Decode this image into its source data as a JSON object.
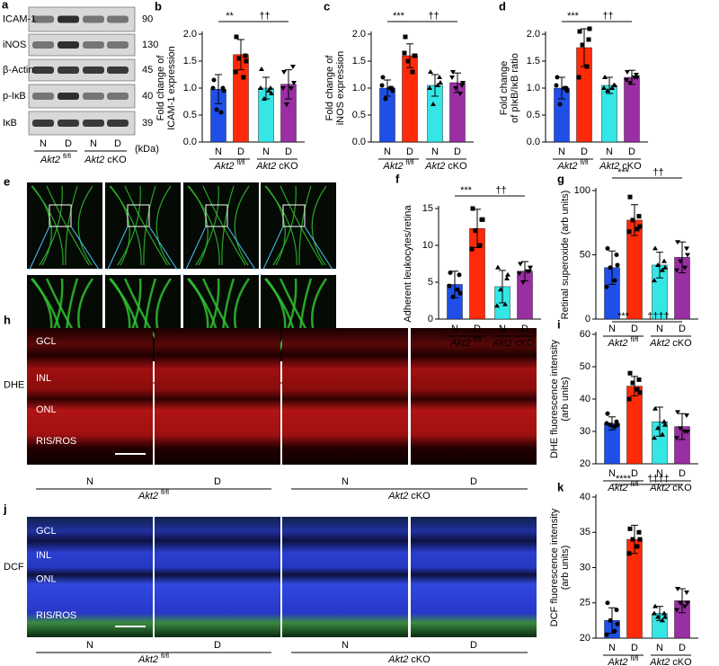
{
  "blot": {
    "label": "a",
    "unit": "(kDa)",
    "rows": [
      {
        "name": "ICAM-1",
        "kda": 90
      },
      {
        "name": "iNOS",
        "kda": 130
      },
      {
        "name": "β-Actin",
        "kda": 45
      },
      {
        "name": "p-IκB",
        "kda": 40
      },
      {
        "name": "IκB",
        "kda": 39
      }
    ]
  },
  "conditions": [
    "N",
    "D"
  ],
  "genotypes": [
    {
      "gene": "Akt2",
      "suffix": "fl/fl"
    },
    {
      "gene": "Akt2",
      "suffix": "cKO"
    }
  ],
  "images": {
    "e": {
      "label": "e"
    },
    "h": {
      "label": "h",
      "stain": "DHE",
      "layers": [
        "GCL",
        "INL",
        "ONL",
        "RIS/ROS"
      ]
    },
    "j": {
      "label": "j",
      "stain": "DCF",
      "layers": [
        "GCL",
        "INL",
        "ONL",
        "RIS/ROS"
      ]
    }
  },
  "chart_data": [
    {
      "type": "bar",
      "label": "b",
      "ylabel": [
        "Fold change of",
        "ICAM-1 expression"
      ],
      "categories": [
        "N",
        "D",
        "N",
        "D"
      ],
      "colors": [
        "#1f4fe6",
        "#ff2a0a",
        "#35e6e6",
        "#9a2ea3"
      ],
      "values": [
        0.98,
        1.62,
        1.0,
        1.07
      ],
      "errors": [
        0.27,
        0.28,
        0.2,
        0.27
      ],
      "points": [
        [
          1.15,
          1.0,
          0.6,
          0.55,
          1.0,
          0.95
        ],
        [
          1.95,
          1.6,
          1.55,
          1.2,
          1.3,
          1.5
        ],
        [
          1.35,
          1.0,
          0.8,
          0.95,
          1.0,
          0.9
        ],
        [
          1.3,
          1.4,
          0.7,
          1.0,
          1.0,
          1.1
        ]
      ],
      "ylim": [
        0,
        2.0
      ],
      "yticks": [
        {
          "value": 0,
          "label": "0.0"
        },
        {
          "value": 0.5,
          "label": "0.5"
        },
        {
          "value": 1,
          "label": "1.0"
        },
        {
          "value": 1.5,
          "label": "1.5"
        },
        {
          "value": 2,
          "label": "2.0"
        }
      ],
      "significance": [
        "**",
        "††"
      ]
    },
    {
      "type": "bar",
      "label": "c",
      "ylabel": [
        "Fold change of",
        "iNOS expression"
      ],
      "categories": [
        "N",
        "D",
        "N",
        "D"
      ],
      "colors": [
        "#1f4fe6",
        "#ff2a0a",
        "#35e6e6",
        "#9a2ea3"
      ],
      "values": [
        1.0,
        1.6,
        1.05,
        1.1
      ],
      "errors": [
        0.15,
        0.22,
        0.2,
        0.18
      ],
      "points": [
        [
          1.2,
          1.0,
          0.8,
          1.0,
          1.05,
          0.95
        ],
        [
          1.95,
          1.6,
          1.5,
          1.3,
          1.65,
          1.6
        ],
        [
          1.3,
          1.2,
          0.7,
          1.05,
          1.0,
          1.1
        ],
        [
          1.3,
          1.05,
          1.0,
          0.9,
          1.2,
          1.1
        ]
      ],
      "ylim": [
        0,
        2.0
      ],
      "yticks": [
        {
          "value": 0,
          "label": "0.0"
        },
        {
          "value": 0.5,
          "label": "0.5"
        },
        {
          "value": 1,
          "label": "1.0"
        },
        {
          "value": 1.5,
          "label": "1.5"
        },
        {
          "value": 2,
          "label": "2.0"
        }
      ],
      "significance": [
        "***",
        "††"
      ]
    },
    {
      "type": "bar",
      "label": "d",
      "ylabel": [
        "Fold change",
        "of pIκB/IκB ratio"
      ],
      "categories": [
        "N",
        "D",
        "N",
        "D"
      ],
      "colors": [
        "#1f4fe6",
        "#ff2a0a",
        "#35e6e6",
        "#9a2ea3"
      ],
      "values": [
        1.0,
        1.75,
        1.05,
        1.2
      ],
      "errors": [
        0.2,
        0.35,
        0.15,
        0.13
      ],
      "points": [
        [
          1.2,
          1.0,
          0.7,
          1.0,
          1.05,
          0.95
        ],
        [
          2.05,
          1.9,
          1.8,
          1.4,
          1.2,
          2.1
        ],
        [
          1.2,
          1.05,
          0.95,
          1.0,
          1.0,
          1.05
        ],
        [
          1.3,
          1.25,
          1.1,
          1.2,
          1.15,
          1.2
        ]
      ],
      "ylim": [
        0,
        2.0
      ],
      "yticks": [
        {
          "value": 0,
          "label": "0.0"
        },
        {
          "value": 0.5,
          "label": "0.5"
        },
        {
          "value": 1,
          "label": "1.0"
        },
        {
          "value": 1.5,
          "label": "1.5"
        },
        {
          "value": 2,
          "label": "2.0"
        }
      ],
      "significance": [
        "***",
        "††"
      ]
    },
    {
      "type": "bar",
      "label": "f",
      "ylabel": [
        "Adherent leukocytes/retina"
      ],
      "categories": [
        "N",
        "D",
        "N",
        "D"
      ],
      "colors": [
        "#1f4fe6",
        "#ff2a0a",
        "#35e6e6",
        "#9a2ea3"
      ],
      "values": [
        4.7,
        12.3,
        4.4,
        6.5
      ],
      "errors": [
        1.8,
        2.6,
        2.2,
        1.3
      ],
      "points": [
        [
          6.3,
          6.0,
          3.0,
          4.0,
          4.5,
          3.5
        ],
        [
          15,
          13.5,
          12,
          10,
          9.5,
          13.5
        ],
        [
          7,
          5.5,
          4,
          2,
          1.8,
          6
        ],
        [
          7.5,
          6.5,
          5,
          6.5,
          6.2,
          7
        ]
      ],
      "ylim": [
        0,
        15
      ],
      "yticks": [
        0,
        5,
        10,
        15
      ],
      "significance": [
        "***",
        "††"
      ]
    },
    {
      "type": "bar",
      "label": "g",
      "ylabel": [
        "Retinal superoxide (arb units)"
      ],
      "categories": [
        "N",
        "D",
        "N",
        "D"
      ],
      "colors": [
        "#1f4fe6",
        "#ff2a0a",
        "#35e6e6",
        "#9a2ea3"
      ],
      "values": [
        40,
        77,
        42,
        48
      ],
      "errors": [
        13,
        12,
        10,
        12
      ],
      "points": [
        [
          55,
          50,
          40,
          30,
          25,
          42
        ],
        [
          95,
          80,
          77,
          70,
          68,
          72
        ],
        [
          55,
          45,
          42,
          38,
          30,
          40
        ],
        [
          60,
          55,
          45,
          40,
          38,
          50
        ]
      ],
      "ylim": [
        0,
        100
      ],
      "yticks": [
        0,
        50,
        100
      ],
      "significance": [
        "***",
        "††"
      ]
    },
    {
      "type": "bar",
      "label": "i",
      "ylabel": [
        "DHE fluorescence intensity",
        "(arb units)"
      ],
      "categories": [
        "N",
        "D",
        "N",
        "D"
      ],
      "colors": [
        "#1f4fe6",
        "#ff2a0a",
        "#35e6e6",
        "#9a2ea3"
      ],
      "values": [
        32.5,
        44,
        33,
        31.5
      ],
      "errors": [
        2,
        3,
        4.5,
        4
      ],
      "points": [
        [
          35.5,
          33,
          32,
          31.5,
          32.5,
          32
        ],
        [
          48,
          46,
          45,
          43,
          40,
          42
        ],
        [
          37,
          33,
          31,
          29,
          28,
          32
        ],
        [
          36,
          35,
          31,
          30,
          28,
          30
        ]
      ],
      "ylim": [
        20,
        60
      ],
      "yticks": [
        20,
        30,
        40,
        50,
        60
      ],
      "significance": [
        "***",
        "††††"
      ]
    },
    {
      "type": "bar",
      "label": "k",
      "ylabel": [
        "DCF fluorescence intensity",
        "(arb units)"
      ],
      "categories": [
        "N",
        "D",
        "N",
        "D"
      ],
      "colors": [
        "#1f4fe6",
        "#ff2a0a",
        "#35e6e6",
        "#9a2ea3"
      ],
      "values": [
        22.5,
        34,
        23.5,
        25.3
      ],
      "errors": [
        1.8,
        2,
        1,
        1.7
      ],
      "points": [
        [
          25,
          24,
          22.5,
          21,
          20.5,
          22
        ],
        [
          35.5,
          35,
          34,
          33,
          32,
          34
        ],
        [
          24.5,
          23.5,
          23,
          22.5,
          23.5,
          23
        ],
        [
          27,
          26.5,
          25,
          24.5,
          24,
          25
        ]
      ],
      "ylim": [
        20,
        40
      ],
      "yticks": [
        20,
        25,
        30,
        35,
        40
      ],
      "significance": [
        "****",
        "††††"
      ]
    }
  ]
}
